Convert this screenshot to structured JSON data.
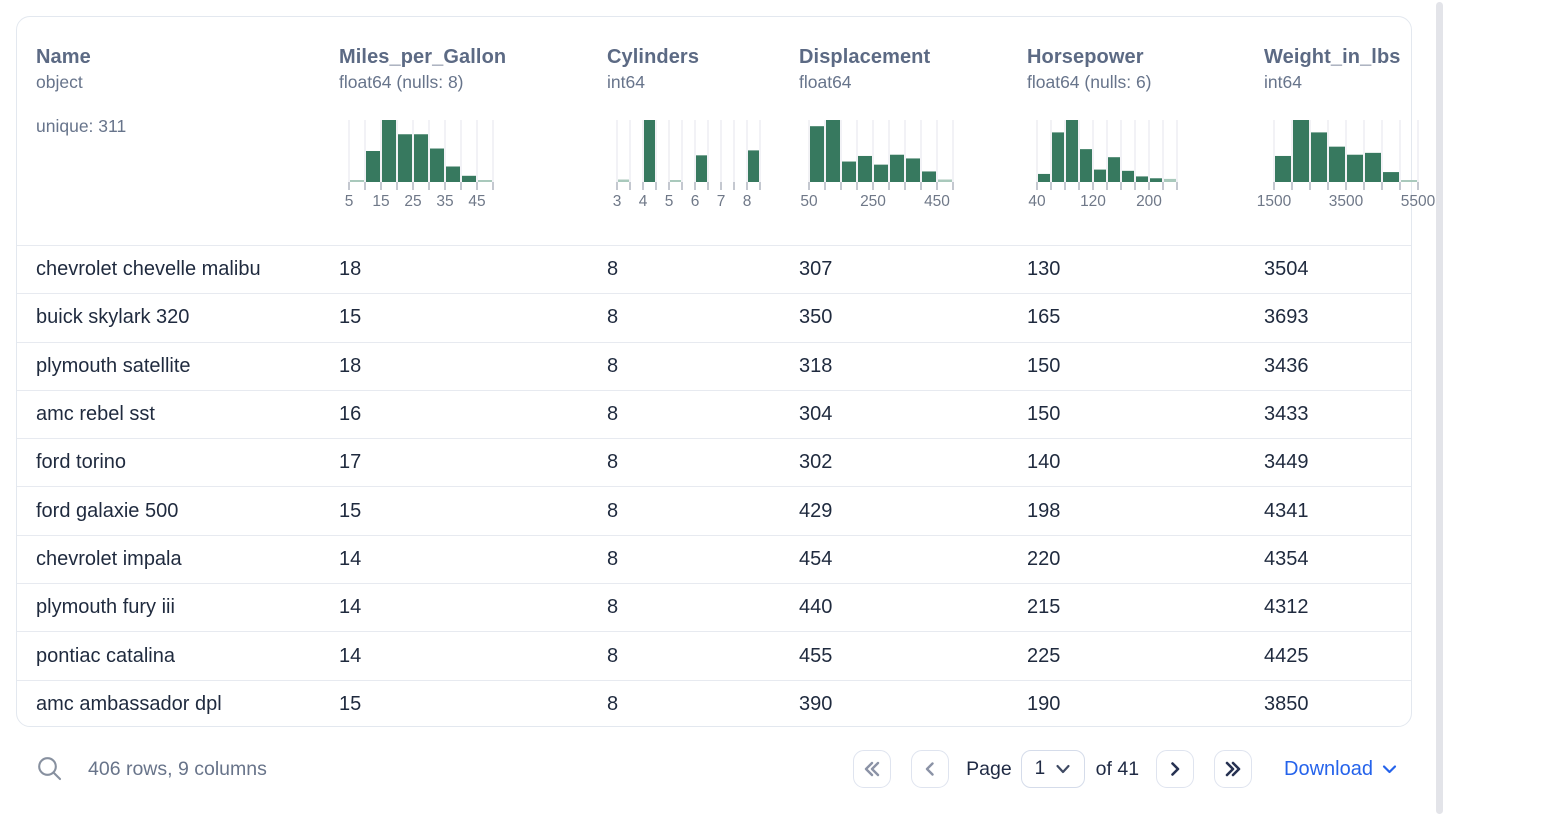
{
  "colors": {
    "bar_green": "#37795f",
    "bar_green_light": "#a9c9bc",
    "gridline": "#ecedf1",
    "tick": "#c4c8d0",
    "tick_label": "#6f7888",
    "download_blue": "#2563eb",
    "disabled_chevron": "#8b93a6",
    "enabled_chevron": "#273252"
  },
  "table": {
    "columns": [
      {
        "name": "Name",
        "type": "object",
        "unique": "unique: 311"
      },
      {
        "name": "Miles_per_Gallon",
        "type": "float64 (nulls: 8)",
        "hist": {
          "bars": [
            0.03,
            0.5,
            1,
            0.77,
            0.77,
            0.54,
            0.25,
            0.1,
            0.03
          ],
          "labels": [
            {
              "i": 0,
              "t": "5"
            },
            {
              "i": 2,
              "t": "15"
            },
            {
              "i": 4,
              "t": "25"
            },
            {
              "i": 6,
              "t": "35"
            },
            {
              "i": 8,
              "t": "45"
            }
          ]
        }
      },
      {
        "name": "Cylinders",
        "type": "int64",
        "hist": {
          "bars": [
            0.04,
            0,
            1,
            0,
            0.03,
            0,
            0.43,
            0,
            0,
            0,
            0.51
          ],
          "labels": [
            {
              "i": 0,
              "t": "3"
            },
            {
              "i": 2,
              "t": "4"
            },
            {
              "i": 4,
              "t": "5"
            },
            {
              "i": 6,
              "t": "6"
            },
            {
              "i": 8,
              "t": "7"
            },
            {
              "i": 10,
              "t": "8"
            }
          ]
        }
      },
      {
        "name": "Displacement",
        "type": "float64",
        "hist": {
          "bars": [
            0.9,
            1,
            0.33,
            0.42,
            0.28,
            0.44,
            0.38,
            0.17,
            0.04
          ],
          "labels": [
            {
              "i": 0,
              "t": "50"
            },
            {
              "i": 4,
              "t": "250"
            },
            {
              "i": 8,
              "t": "450"
            }
          ]
        }
      },
      {
        "name": "Horsepower",
        "type": "float64 (nulls: 6)",
        "hist": {
          "bars": [
            0.13,
            0.8,
            1,
            0.53,
            0.2,
            0.4,
            0.18,
            0.09,
            0.06,
            0.05
          ],
          "labels": [
            {
              "i": 0,
              "t": "40"
            },
            {
              "i": 4,
              "t": "120"
            },
            {
              "i": 8,
              "t": "200"
            }
          ]
        }
      },
      {
        "name": "Weight_in_lbs",
        "type": "int64",
        "hist": {
          "bars": [
            0.42,
            1,
            0.8,
            0.57,
            0.44,
            0.47,
            0.16,
            0.03
          ],
          "labels": [
            {
              "i": 0,
              "t": "1500"
            },
            {
              "i": 4,
              "t": "3500"
            },
            {
              "i": 8,
              "t": "5500"
            }
          ]
        }
      }
    ],
    "rows": [
      [
        "chevrolet chevelle malibu",
        "18",
        "8",
        "307",
        "130",
        "3504"
      ],
      [
        "buick skylark 320",
        "15",
        "8",
        "350",
        "165",
        "3693"
      ],
      [
        "plymouth satellite",
        "18",
        "8",
        "318",
        "150",
        "3436"
      ],
      [
        "amc rebel sst",
        "16",
        "8",
        "304",
        "150",
        "3433"
      ],
      [
        "ford torino",
        "17",
        "8",
        "302",
        "140",
        "3449"
      ],
      [
        "ford galaxie 500",
        "15",
        "8",
        "429",
        "198",
        "4341"
      ],
      [
        "chevrolet impala",
        "14",
        "8",
        "454",
        "220",
        "4354"
      ],
      [
        "plymouth fury iii",
        "14",
        "8",
        "440",
        "215",
        "4312"
      ],
      [
        "pontiac catalina",
        "14",
        "8",
        "455",
        "225",
        "4425"
      ],
      [
        "amc ambassador dpl",
        "15",
        "8",
        "390",
        "190",
        "3850"
      ]
    ]
  },
  "footer": {
    "status": "406 rows, 9 columns",
    "page_label": "Page",
    "page_value": "1",
    "of_label": "of 41",
    "download_label": "Download"
  }
}
